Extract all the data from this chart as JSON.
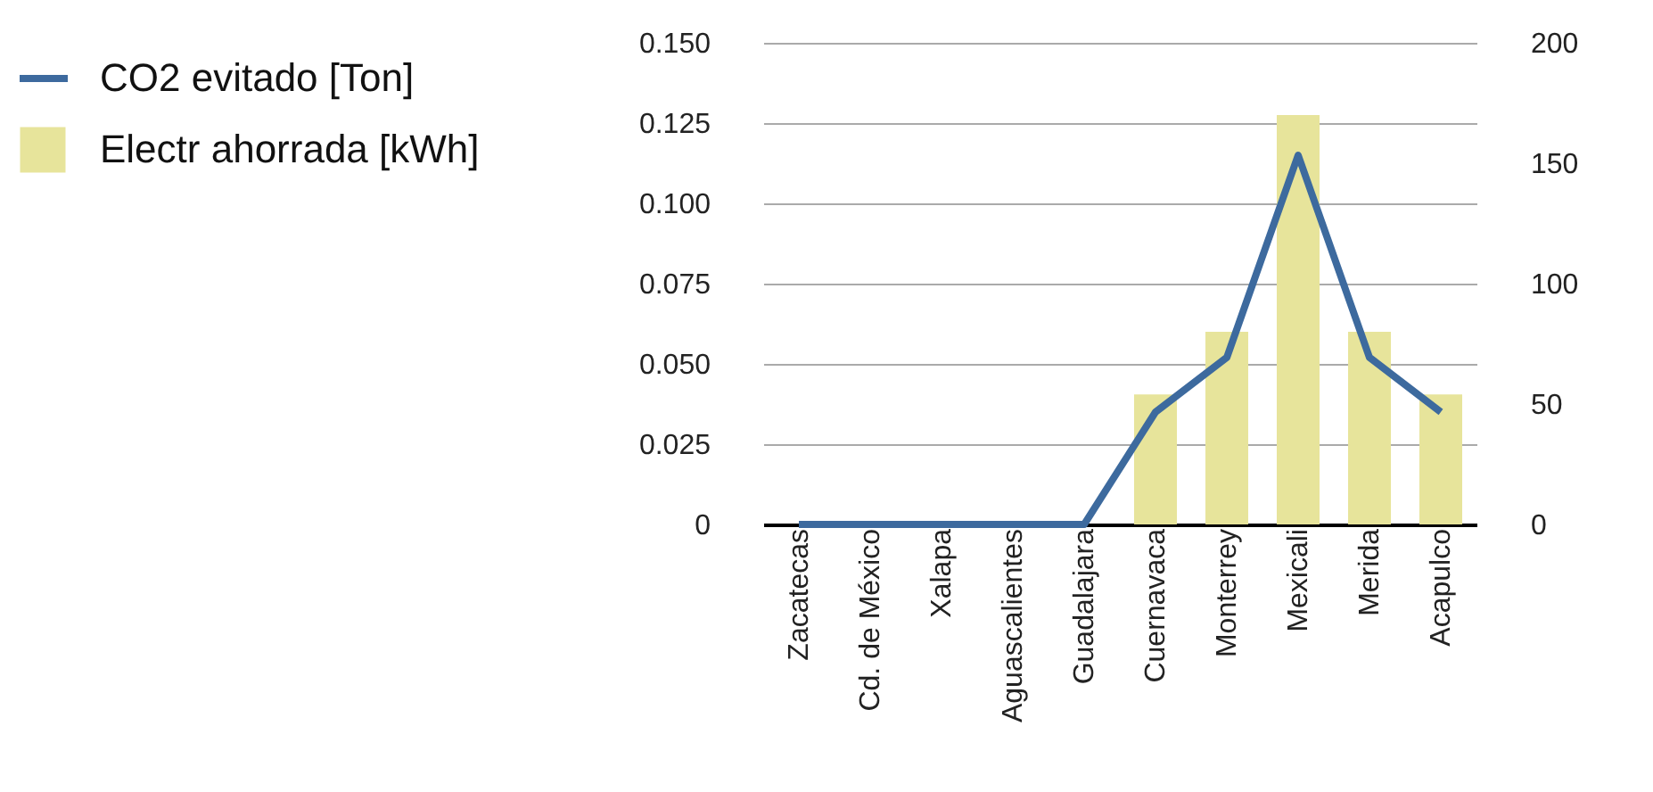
{
  "chart_data": {
    "type": "bar",
    "categories": [
      "Zacatecas",
      "Cd. de México",
      "Xalapa",
      "Aguascalientes",
      "Guadalajara",
      "Cuernavaca",
      "Monterrey",
      "Mexicali",
      "Merida",
      "Acapulco"
    ],
    "series": [
      {
        "name": "CO2 evitado [Ton]",
        "type": "line",
        "color": "#3d6a9e",
        "values": [
          0,
          0,
          0,
          0,
          0,
          0.035,
          0.052,
          0.115,
          0.052,
          0.035
        ]
      },
      {
        "name": "Electr ahorrada [kWh]",
        "type": "bar",
        "axis": "y2",
        "color": "#e7e49b",
        "values": [
          0,
          0,
          0,
          0,
          0,
          54,
          80,
          170,
          80,
          54
        ]
      }
    ],
    "ylim": [
      0,
      0.15
    ],
    "yticks": [
      {
        "value": 0,
        "label": "0"
      },
      {
        "value": 0.025,
        "label": "0.025"
      },
      {
        "value": 0.05,
        "label": "0.050"
      },
      {
        "value": 0.075,
        "label": "0.075"
      },
      {
        "value": 0.1,
        "label": "0.100"
      },
      {
        "value": 0.125,
        "label": "0.125"
      },
      {
        "value": 0.15,
        "label": "0.150"
      }
    ],
    "y2lim": [
      0,
      200
    ],
    "y2ticks": [
      0,
      50,
      100,
      150,
      200
    ],
    "grid": "y",
    "legend": "left"
  }
}
